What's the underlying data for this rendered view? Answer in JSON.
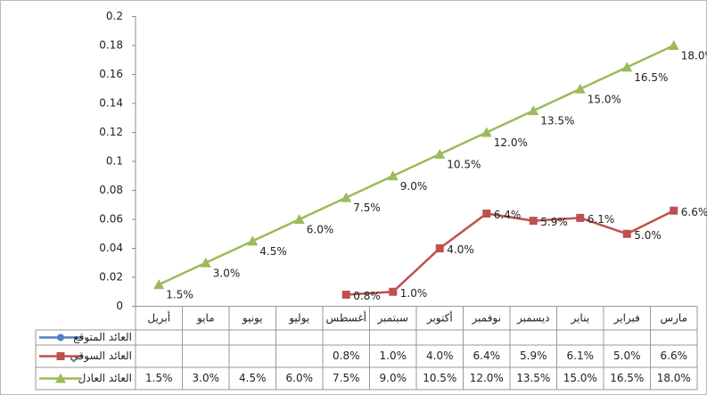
{
  "chart_data": {
    "type": "line",
    "categories": [
      "أبريل",
      "مايو",
      "يونيو",
      "يوليو",
      "أغسطس",
      "سبتمبر",
      "أكتوبر",
      "نوفمبر",
      "ديسمبر",
      "يناير",
      "فبراير",
      "مارس"
    ],
    "series": [
      {
        "name": "العائد المتوقع",
        "color": "#4f81bd",
        "marker": "circle",
        "values": [
          null,
          null,
          null,
          null,
          null,
          null,
          null,
          null,
          null,
          null,
          null,
          null
        ]
      },
      {
        "name": "العائد السوقي",
        "color": "#c0504d",
        "marker": "square",
        "values": [
          null,
          null,
          null,
          null,
          0.008,
          0.01,
          0.04,
          0.064,
          0.059,
          0.061,
          0.05,
          0.066
        ],
        "value_labels": [
          null,
          null,
          null,
          null,
          "0.8%",
          "1.0%",
          "4.0%",
          "6.4%",
          "5.9%",
          "6.1%",
          "5.0%",
          "6.6%"
        ]
      },
      {
        "name": "العائد العادل",
        "color": "#9bbb59",
        "marker": "triangle",
        "values": [
          0.015,
          0.03,
          0.045,
          0.06,
          0.075,
          0.09,
          0.105,
          0.12,
          0.135,
          0.15,
          0.165,
          0.18
        ],
        "value_labels": [
          "1.5%",
          "3.0%",
          "4.5%",
          "6.0%",
          "7.5%",
          "9.0%",
          "10.5%",
          "12.0%",
          "13.5%",
          "15.0%",
          "16.5%",
          "18.0%"
        ]
      }
    ],
    "ylim": [
      0,
      0.2
    ],
    "yticks": [
      0,
      0.02,
      0.04,
      0.06,
      0.08,
      0.1,
      0.12,
      0.14,
      0.16,
      0.18,
      0.2
    ],
    "grid": false,
    "legend": "table"
  }
}
